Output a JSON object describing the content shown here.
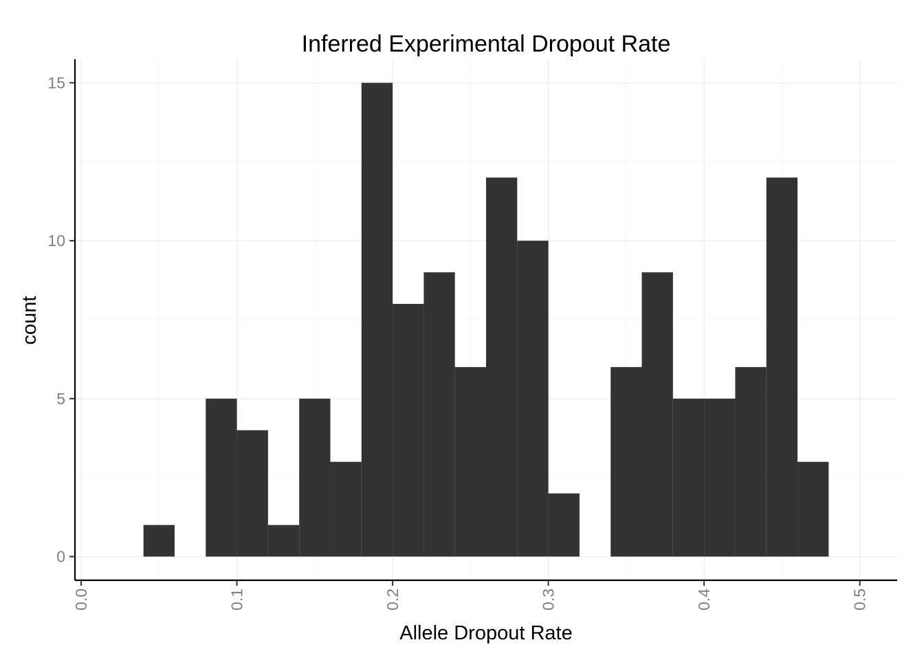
{
  "chart_data": {
    "type": "bar",
    "title": "Inferred Experimental Dropout Rate",
    "xlabel": "Allele Dropout Rate",
    "ylabel": "count",
    "xlim": [
      -0.004,
      0.524
    ],
    "ylim": [
      -0.75,
      15.75
    ],
    "x_ticks": [
      0.0,
      0.1,
      0.2,
      0.3,
      0.4,
      0.5
    ],
    "x_tick_labels": [
      "0.0",
      "0.1",
      "0.2",
      "0.3",
      "0.4",
      "0.5"
    ],
    "y_ticks": [
      0,
      5,
      10,
      15
    ],
    "y_tick_labels": [
      "0",
      "5",
      "10",
      "15"
    ],
    "bin_width": 0.02,
    "bin_starts": [
      0.04,
      0.06,
      0.08,
      0.1,
      0.12,
      0.14,
      0.16,
      0.18,
      0.2,
      0.22,
      0.24,
      0.26,
      0.28,
      0.3,
      0.32,
      0.34,
      0.36,
      0.38,
      0.4,
      0.42,
      0.44,
      0.46
    ],
    "counts": [
      1,
      0,
      5,
      4,
      1,
      5,
      3,
      15,
      8,
      9,
      6,
      12,
      10,
      2,
      0,
      6,
      9,
      5,
      5,
      6,
      12,
      3
    ],
    "grid": true,
    "colors": {
      "bar": "#333333",
      "grid": "#ebebeb",
      "tick_label": "#7f7f7f"
    }
  }
}
